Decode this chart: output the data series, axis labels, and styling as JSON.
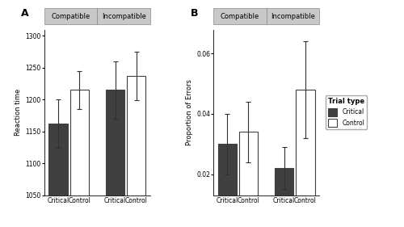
{
  "plot_A": {
    "title": "A",
    "ylabel": "Reaction time",
    "ylim": [
      1050,
      1310
    ],
    "yticks": [
      1050,
      1100,
      1150,
      1200,
      1250,
      1300
    ],
    "ytick_labels": [
      "1050",
      "1100",
      "1150",
      "1200",
      "1250",
      "1300"
    ],
    "groups": [
      "Compatible",
      "Incompatible"
    ],
    "bars": {
      "Critical": [
        1162,
        1215
      ],
      "Control": [
        1215,
        1237
      ]
    },
    "errors": {
      "Critical": [
        38,
        45
      ],
      "Control": [
        30,
        38
      ]
    }
  },
  "plot_B": {
    "title": "B",
    "ylabel": "Proportion of Errors",
    "ylim": [
      0.013,
      0.068
    ],
    "yticks": [
      0.02,
      0.04,
      0.06
    ],
    "ytick_labels": [
      "0.02",
      "0.04",
      "0.06"
    ],
    "groups": [
      "Compatible",
      "Incompatible"
    ],
    "bars": {
      "Critical": [
        0.03,
        0.022
      ],
      "Control": [
        0.034,
        0.048
      ]
    },
    "errors": {
      "Critical": [
        0.01,
        0.007
      ],
      "Control": [
        0.01,
        0.016
      ]
    }
  },
  "colors": {
    "Critical": "#404040",
    "Control": "#ffffff"
  },
  "bar_edgecolor": "#404040",
  "facet_bg": "#c8c8c8",
  "facet_text_color": "#000000",
  "background_color": "#ffffff",
  "bar_width": 0.35,
  "group_positions": [
    0,
    1.05
  ],
  "xlim": [
    -0.45,
    1.5
  ],
  "legend_title": "Trial type",
  "legend_entries": [
    "Critical",
    "Control"
  ]
}
